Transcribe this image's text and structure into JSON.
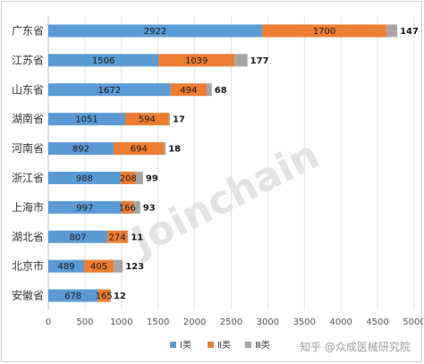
{
  "chart_data": {
    "type": "bar",
    "orientation": "horizontal",
    "stacked": true,
    "categories": [
      "广东省",
      "江苏省",
      "山东省",
      "湖南省",
      "河南省",
      "浙江省",
      "上海市",
      "湖北省",
      "北京市",
      "安徽省"
    ],
    "series": [
      {
        "name": "Ⅰ类",
        "color": "#5b9bd5",
        "values": [
          2922,
          1506,
          1672,
          1051,
          892,
          988,
          997,
          807,
          489,
          678
        ]
      },
      {
        "name": "Ⅱ类",
        "color": "#ed7d31",
        "values": [
          1700,
          1039,
          494,
          594,
          694,
          208,
          166,
          274,
          405,
          165
        ]
      },
      {
        "name": "Ⅲ类",
        "color": "#a5a5a5",
        "values": [
          147,
          177,
          68,
          17,
          18,
          99,
          93,
          11,
          123,
          12
        ]
      }
    ],
    "xlim": [
      0,
      5000
    ],
    "xticks": [
      0,
      500,
      1000,
      1500,
      2000,
      2500,
      3000,
      3500,
      4000,
      4500,
      5000
    ],
    "grid": true,
    "legend_position": "bottom",
    "title": "",
    "xlabel": "",
    "ylabel": ""
  },
  "watermark": "Joinchain",
  "source_credit": "知乎 @众成医械研究院"
}
